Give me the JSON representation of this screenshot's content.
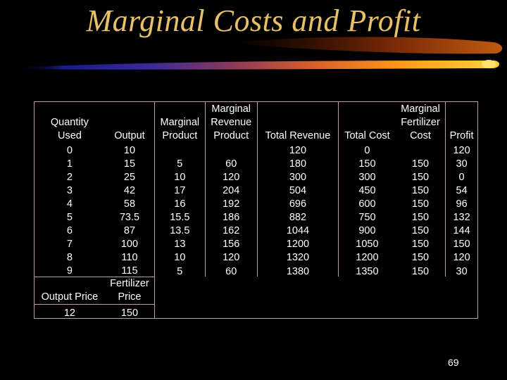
{
  "title": "Marginal Costs and Profit",
  "headers": [
    [
      "Quantity",
      "Used"
    ],
    [
      "Output"
    ],
    [
      "Marginal",
      "Product"
    ],
    [
      "Marginal",
      "Revenue",
      "Product"
    ],
    [
      "Total Revenue"
    ],
    [
      "Total Cost"
    ],
    [
      "Marginal",
      "Fertilizer",
      "Cost"
    ],
    [
      "Profit"
    ]
  ],
  "rows": [
    [
      "0",
      "10",
      "",
      "",
      "120",
      "0",
      "",
      "120"
    ],
    [
      "1",
      "15",
      "5",
      "60",
      "180",
      "150",
      "150",
      "30"
    ],
    [
      "2",
      "25",
      "10",
      "120",
      "300",
      "300",
      "150",
      "0"
    ],
    [
      "3",
      "42",
      "17",
      "204",
      "504",
      "450",
      "150",
      "54"
    ],
    [
      "4",
      "58",
      "16",
      "192",
      "696",
      "600",
      "150",
      "96"
    ],
    [
      "5",
      "73.5",
      "15.5",
      "186",
      "882",
      "750",
      "150",
      "132"
    ],
    [
      "6",
      "87",
      "13.5",
      "162",
      "1044",
      "900",
      "150",
      "144"
    ],
    [
      "7",
      "100",
      "13",
      "156",
      "1200",
      "1050",
      "150",
      "150"
    ],
    [
      "8",
      "110",
      "10",
      "120",
      "1320",
      "1200",
      "150",
      "120"
    ],
    [
      "9",
      "115",
      "5",
      "60",
      "1380",
      "1350",
      "150",
      "30"
    ]
  ],
  "prices": {
    "output_label": "Output Price",
    "fertilizer_label_1": "Fertilizer",
    "fertilizer_label_2": "Price",
    "output_value": "12",
    "fertilizer_value": "150"
  },
  "page_number": "69",
  "colors": {
    "background": "#000000",
    "title": "#e8c066",
    "text": "#ffffff",
    "grid": "#bb9fae"
  }
}
